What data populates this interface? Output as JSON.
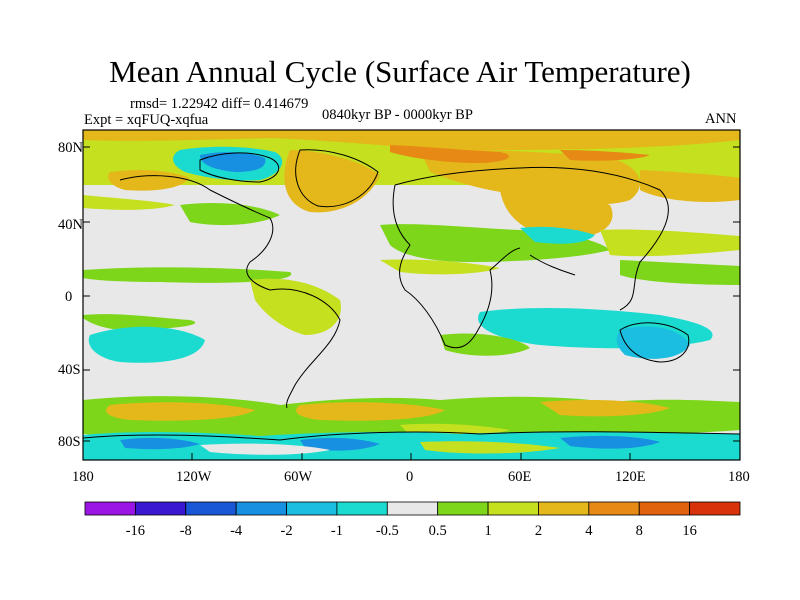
{
  "title": "Mean Annual Cycle (Surface Air Temperature)",
  "stats": "rmsd= 1.22942 diff= 0.414679",
  "experiment": "Expt = xqFUQ-xqfua",
  "period": "0840kyr BP - 0000kyr BP",
  "season": "ANN",
  "lat_labels": [
    "80N",
    "40N",
    "0",
    "40S",
    "80S"
  ],
  "lon_labels": [
    "180",
    "120W",
    "60W",
    "0",
    "60E",
    "120E",
    "180"
  ],
  "colorbar": {
    "colors": [
      "#9b16e5",
      "#3a17d0",
      "#1a57d6",
      "#1890e2",
      "#1bbde0",
      "#1bdbd0",
      "#e8e8e8",
      "#7ed61b",
      "#c5e01f",
      "#e4b81a",
      "#e68a15",
      "#e0620f",
      "#d7320a"
    ],
    "labels": [
      "-16",
      "-8",
      "-4",
      "-2",
      "-1",
      "-0.5",
      "0.5",
      "1",
      "2",
      "4",
      "8",
      "16"
    ]
  }
}
